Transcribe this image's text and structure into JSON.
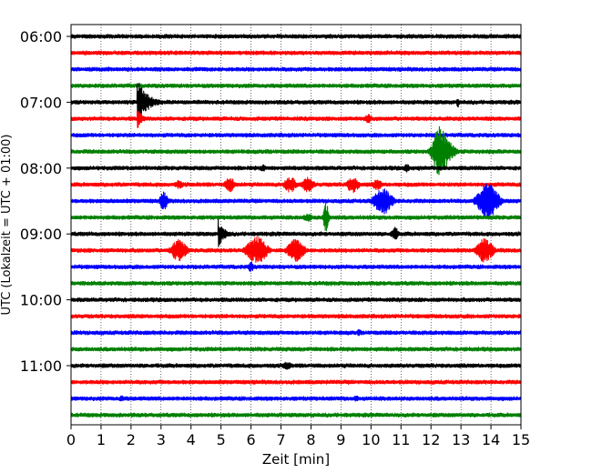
{
  "chart_data": {
    "type": "line",
    "title": "",
    "xlabel": "Zeit  [min]",
    "ylabel": "UTC (Lokalzeit = UTC + 01:00)",
    "xlim": [
      0,
      15
    ],
    "x_ticks": [
      "0",
      "1",
      "2",
      "3",
      "4",
      "5",
      "6",
      "7",
      "8",
      "9",
      "10",
      "11",
      "12",
      "13",
      "14",
      "15"
    ],
    "y_tick_labels": [
      "06:00",
      "07:00",
      "08:00",
      "09:00",
      "10:00",
      "11:00"
    ],
    "trace_interval_min": 15,
    "trace_colors": [
      "#000000",
      "#ff0000",
      "#0000ff",
      "#008000"
    ],
    "grid": "vertical dotted",
    "traces": [
      {
        "start": "06:00",
        "events": []
      },
      {
        "start": "06:15",
        "events": []
      },
      {
        "start": "06:30",
        "events": []
      },
      {
        "start": "06:45",
        "events": []
      },
      {
        "start": "07:00",
        "events": [
          {
            "t": 2.2,
            "amp": 1.0,
            "dur": 1.2,
            "type": "quake"
          },
          {
            "t": 12.9,
            "amp": 0.2,
            "dur": 0.1,
            "type": "spike"
          }
        ]
      },
      {
        "start": "07:15",
        "events": [
          {
            "t": 2.2,
            "amp": 0.45,
            "dur": 0.6,
            "type": "quake"
          },
          {
            "t": 9.9,
            "amp": 0.2,
            "dur": 0.3,
            "type": "burst"
          }
        ]
      },
      {
        "start": "07:30",
        "events": []
      },
      {
        "start": "07:45",
        "events": [
          {
            "t": 12.3,
            "amp": 1.0,
            "dur": 0.7,
            "type": "burst"
          },
          {
            "t": 12.4,
            "amp": 0.6,
            "dur": 1.0,
            "type": "burst"
          }
        ]
      },
      {
        "start": "08:00",
        "events": [
          {
            "t": 6.4,
            "amp": 0.15,
            "dur": 0.2,
            "type": "spike"
          },
          {
            "t": 11.2,
            "amp": 0.15,
            "dur": 0.3,
            "type": "burst"
          },
          {
            "t": 11.6,
            "amp": 0.1,
            "dur": 0.3,
            "type": "burst"
          }
        ]
      },
      {
        "start": "08:15",
        "events": [
          {
            "t": 3.6,
            "amp": 0.15,
            "dur": 0.5,
            "type": "burst"
          },
          {
            "t": 5.3,
            "amp": 0.3,
            "dur": 0.5,
            "type": "burst"
          },
          {
            "t": 7.3,
            "amp": 0.3,
            "dur": 0.6,
            "type": "burst"
          },
          {
            "t": 7.9,
            "amp": 0.3,
            "dur": 0.6,
            "type": "burst"
          },
          {
            "t": 9.4,
            "amp": 0.3,
            "dur": 0.6,
            "type": "burst"
          },
          {
            "t": 10.2,
            "amp": 0.2,
            "dur": 0.5,
            "type": "burst"
          }
        ]
      },
      {
        "start": "08:30",
        "events": [
          {
            "t": 3.1,
            "amp": 0.35,
            "dur": 0.4,
            "type": "burst"
          },
          {
            "t": 10.4,
            "amp": 0.5,
            "dur": 0.9,
            "type": "burst"
          },
          {
            "t": 13.9,
            "amp": 0.7,
            "dur": 1.0,
            "type": "burst"
          }
        ]
      },
      {
        "start": "08:45",
        "events": [
          {
            "t": 7.9,
            "amp": 0.15,
            "dur": 0.5,
            "type": "burst"
          },
          {
            "t": 8.5,
            "amp": 0.55,
            "dur": 0.2,
            "type": "spike"
          }
        ]
      },
      {
        "start": "09:00",
        "events": [
          {
            "t": 4.9,
            "amp": 0.55,
            "dur": 0.8,
            "type": "quake"
          },
          {
            "t": 10.8,
            "amp": 0.25,
            "dur": 0.4,
            "type": "burst"
          }
        ]
      },
      {
        "start": "09:15",
        "events": [
          {
            "t": 3.6,
            "amp": 0.4,
            "dur": 0.8,
            "type": "burst"
          },
          {
            "t": 6.2,
            "amp": 0.5,
            "dur": 1.0,
            "type": "burst"
          },
          {
            "t": 7.5,
            "amp": 0.45,
            "dur": 0.8,
            "type": "burst"
          },
          {
            "t": 13.8,
            "amp": 0.45,
            "dur": 0.8,
            "type": "burst"
          }
        ]
      },
      {
        "start": "09:30",
        "events": [
          {
            "t": 6.0,
            "amp": 0.2,
            "dur": 0.2,
            "type": "spike"
          }
        ]
      },
      {
        "start": "09:45",
        "events": []
      },
      {
        "start": "10:00",
        "events": []
      },
      {
        "start": "10:15",
        "events": []
      },
      {
        "start": "10:30",
        "events": [
          {
            "t": 9.6,
            "amp": 0.12,
            "dur": 0.3,
            "type": "burst"
          }
        ]
      },
      {
        "start": "10:45",
        "events": []
      },
      {
        "start": "11:00",
        "events": [
          {
            "t": 7.2,
            "amp": 0.15,
            "dur": 0.5,
            "type": "burst"
          }
        ]
      },
      {
        "start": "11:15",
        "events": []
      },
      {
        "start": "11:30",
        "events": [
          {
            "t": 1.7,
            "amp": 0.12,
            "dur": 0.2,
            "type": "spike"
          },
          {
            "t": 9.5,
            "amp": 0.12,
            "dur": 0.3,
            "type": "burst"
          }
        ]
      },
      {
        "start": "11:45",
        "events": []
      }
    ]
  }
}
